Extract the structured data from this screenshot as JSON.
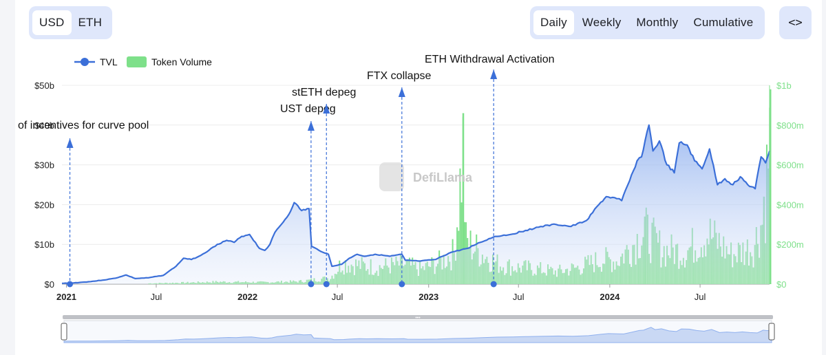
{
  "currency_toggle": {
    "options": [
      "USD",
      "ETH"
    ],
    "selected": "USD"
  },
  "interval_toggle": {
    "options": [
      "Daily",
      "Weekly",
      "Monthly",
      "Cumulative"
    ],
    "selected": "Daily"
  },
  "embed_button": {
    "icon": "code-brackets-icon",
    "label": "<>"
  },
  "watermark": {
    "text": "DefiLlama"
  },
  "colors": {
    "tvl_line": "#3b6fd8",
    "tvl_fill_top": "#8fb0ee",
    "volume_bar": "#7ee08a",
    "right_axis": "#7ee08a",
    "grid": "#ececec"
  },
  "chart_data": {
    "type": "line",
    "legend": {
      "placement": "top-left",
      "items": [
        "TVL",
        "Token Volume"
      ]
    },
    "x_ticks": [
      {
        "label": "2021",
        "date": "2021-01-01",
        "major": true
      },
      {
        "label": "Jul",
        "date": "2021-07-01",
        "major": false
      },
      {
        "label": "2022",
        "date": "2022-01-01",
        "major": true
      },
      {
        "label": "Jul",
        "date": "2022-07-01",
        "major": false
      },
      {
        "label": "2023",
        "date": "2023-01-01",
        "major": true
      },
      {
        "label": "Jul",
        "date": "2023-07-01",
        "major": false
      },
      {
        "label": "2024",
        "date": "2024-01-01",
        "major": true
      },
      {
        "label": "Jul",
        "date": "2024-07-01",
        "major": false
      }
    ],
    "x_range": [
      "2020-12-23",
      "2024-11-18"
    ],
    "y_left": {
      "ticks": [
        "$0",
        "$10b",
        "$20b",
        "$30b",
        "$40b",
        "$50b"
      ],
      "range": [
        0,
        50
      ]
    },
    "y_right": {
      "ticks": [
        "$0",
        "$200m",
        "$400m",
        "$600m",
        "$800m",
        "$1b"
      ],
      "range": [
        0,
        1000
      ]
    },
    "grid": true,
    "series": [
      {
        "name": "TVL",
        "unit": "billion USD",
        "points": [
          [
            "2020-12-23",
            0.2
          ],
          [
            "2021-01-15",
            0.3
          ],
          [
            "2021-02-15",
            0.6
          ],
          [
            "2021-03-15",
            1.0
          ],
          [
            "2021-04-10",
            1.5
          ],
          [
            "2021-05-01",
            2.3
          ],
          [
            "2021-05-20",
            1.4
          ],
          [
            "2021-06-15",
            1.6
          ],
          [
            "2021-07-15",
            2.2
          ],
          [
            "2021-08-10",
            4.5
          ],
          [
            "2021-08-25",
            6.5
          ],
          [
            "2021-09-10",
            6.2
          ],
          [
            "2021-09-25",
            7.0
          ],
          [
            "2021-10-15",
            8.5
          ],
          [
            "2021-11-01",
            10.0
          ],
          [
            "2021-11-20",
            11.0
          ],
          [
            "2021-12-05",
            10.5
          ],
          [
            "2021-12-20",
            12.0
          ],
          [
            "2022-01-05",
            12.5
          ],
          [
            "2022-01-25",
            9.0
          ],
          [
            "2022-02-05",
            8.5
          ],
          [
            "2022-02-15",
            10.0
          ],
          [
            "2022-02-25",
            13.0
          ],
          [
            "2022-03-10",
            15.0
          ],
          [
            "2022-03-25",
            17.5
          ],
          [
            "2022-04-05",
            20.5
          ],
          [
            "2022-04-20",
            18.5
          ],
          [
            "2022-05-05",
            19.0
          ],
          [
            "2022-05-10",
            9.5
          ],
          [
            "2022-05-25",
            8.5
          ],
          [
            "2022-06-13",
            7.5
          ],
          [
            "2022-06-20",
            4.5
          ],
          [
            "2022-07-10",
            5.0
          ],
          [
            "2022-07-25",
            6.5
          ],
          [
            "2022-08-10",
            7.5
          ],
          [
            "2022-08-25",
            7.0
          ],
          [
            "2022-09-15",
            7.5
          ],
          [
            "2022-10-15",
            7.0
          ],
          [
            "2022-11-08",
            7.5
          ],
          [
            "2022-11-15",
            6.0
          ],
          [
            "2022-12-15",
            5.8
          ],
          [
            "2023-01-15",
            6.2
          ],
          [
            "2023-02-15",
            8.0
          ],
          [
            "2023-03-20",
            9.0
          ],
          [
            "2023-04-15",
            10.5
          ],
          [
            "2023-05-15",
            12.0
          ],
          [
            "2023-06-15",
            12.5
          ],
          [
            "2023-07-15",
            13.5
          ],
          [
            "2023-08-15",
            14.5
          ],
          [
            "2023-09-15",
            15.0
          ],
          [
            "2023-10-15",
            14.5
          ],
          [
            "2023-11-15",
            16.0
          ],
          [
            "2023-12-10",
            20.0
          ],
          [
            "2023-12-25",
            22.0
          ],
          [
            "2024-01-15",
            21.5
          ],
          [
            "2024-01-25",
            21.0
          ],
          [
            "2024-02-10",
            26.0
          ],
          [
            "2024-02-25",
            31.0
          ],
          [
            "2024-03-05",
            32.0
          ],
          [
            "2024-03-12",
            36.0
          ],
          [
            "2024-03-20",
            40.0
          ],
          [
            "2024-03-28",
            33.5
          ],
          [
            "2024-04-10",
            36.0
          ],
          [
            "2024-04-25",
            30.0
          ],
          [
            "2024-05-10",
            28.0
          ],
          [
            "2024-05-20",
            35.5
          ],
          [
            "2024-06-05",
            35.0
          ],
          [
            "2024-06-20",
            31.0
          ],
          [
            "2024-07-05",
            29.0
          ],
          [
            "2024-07-20",
            34.0
          ],
          [
            "2024-08-05",
            25.0
          ],
          [
            "2024-08-20",
            26.5
          ],
          [
            "2024-09-05",
            25.0
          ],
          [
            "2024-09-20",
            27.0
          ],
          [
            "2024-10-05",
            25.0
          ],
          [
            "2024-10-20",
            24.0
          ],
          [
            "2024-11-01",
            32.0
          ],
          [
            "2024-11-10",
            30.5
          ],
          [
            "2024-11-18",
            33.5
          ]
        ]
      },
      {
        "name": "Token Volume",
        "unit": "million USD",
        "points": [
          [
            "2021-06-15",
            5
          ],
          [
            "2021-09-01",
            10
          ],
          [
            "2021-11-01",
            15
          ],
          [
            "2022-02-01",
            12
          ],
          [
            "2022-04-15",
            18
          ],
          [
            "2022-06-15",
            40
          ],
          [
            "2022-07-10",
            140
          ],
          [
            "2022-08-15",
            120
          ],
          [
            "2022-09-20",
            110
          ],
          [
            "2022-11-10",
            130
          ],
          [
            "2022-12-15",
            95
          ],
          [
            "2023-01-20",
            140
          ],
          [
            "2023-02-20",
            200
          ],
          [
            "2023-03-10",
            860
          ],
          [
            "2023-03-15",
            280
          ],
          [
            "2023-04-20",
            190
          ],
          [
            "2023-05-20",
            130
          ],
          [
            "2023-06-20",
            110
          ],
          [
            "2023-08-01",
            100
          ],
          [
            "2023-09-15",
            80
          ],
          [
            "2023-11-01",
            110
          ],
          [
            "2023-12-15",
            160
          ],
          [
            "2024-01-15",
            150
          ],
          [
            "2024-03-10",
            340
          ],
          [
            "2024-04-15",
            220
          ],
          [
            "2024-06-01",
            210
          ],
          [
            "2024-07-15",
            330
          ],
          [
            "2024-09-01",
            190
          ],
          [
            "2024-10-15",
            240
          ],
          [
            "2024-11-05",
            440
          ],
          [
            "2024-11-18",
            980
          ]
        ]
      }
    ],
    "annotations": [
      {
        "label": "of incentives for curve pool",
        "date": "2021-01-08"
      },
      {
        "label": "UST depeg",
        "date": "2022-05-09"
      },
      {
        "label": "stETH depeg",
        "date": "2022-06-09"
      },
      {
        "label": "FTX collapse",
        "date": "2022-11-08"
      },
      {
        "label": "ETH Withdrawal Activation",
        "date": "2023-05-12"
      }
    ]
  }
}
